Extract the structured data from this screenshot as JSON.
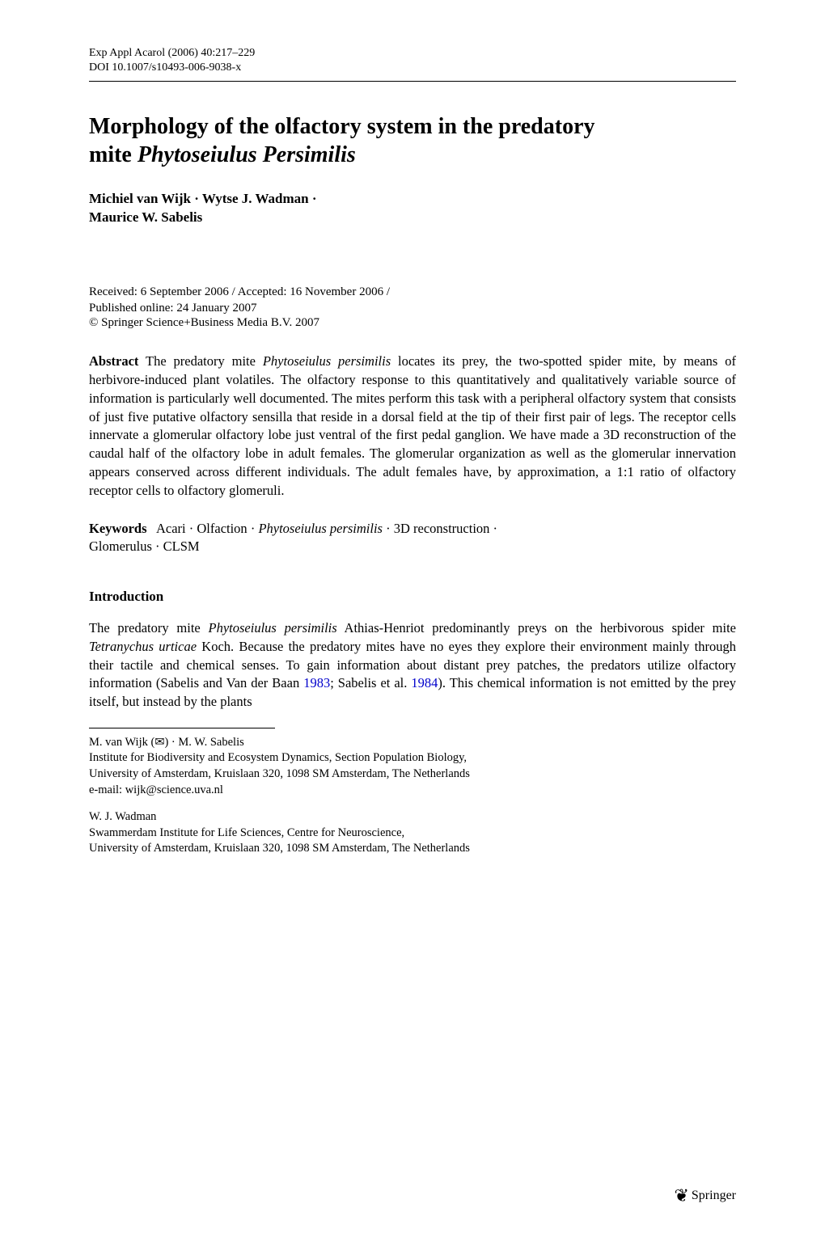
{
  "header": {
    "journal_ref": "Exp Appl Acarol (2006) 40:217–229",
    "doi": "DOI 10.1007/s10493-006-9038-x"
  },
  "title": {
    "line1": "Morphology of the olfactory system in the predatory",
    "line2_prefix": "mite ",
    "line2_italic": "Phytoseiulus Persimilis"
  },
  "authors": {
    "a1": "Michiel van Wijk",
    "a2": "Wytse J. Wadman",
    "a3": "Maurice W. Sabelis"
  },
  "dates": {
    "received_accepted": "Received: 6 September 2006 / Accepted: 16 November 2006 /",
    "published": "Published online: 24 January 2007",
    "copyright": "© Springer Science+Business Media B.V. 2007"
  },
  "abstract": {
    "label": "Abstract",
    "text_pre_italic": "  The predatory mite ",
    "species_italic": "Phytoseiulus persimilis",
    "text_post": " locates its prey, the two-spotted spider mite, by means of herbivore-induced plant volatiles. The olfactory response to this quantitatively and qualitatively variable source of information is particularly well documented. The mites perform this task with a peripheral olfactory system that consists of just five putative olfactory sensilla that reside in a dorsal field at the tip of their first pair of legs. The receptor cells innervate a glomerular olfactory lobe just ventral of the first pedal ganglion. We have made a 3D reconstruction of the caudal half of the olfactory lobe in adult females. The glomerular organization as well as the glomerular innervation appears conserved across different individuals. The adult females have, by approximation, a 1:1 ratio of olfactory receptor cells to olfactory glomeruli."
  },
  "keywords": {
    "label": "Keywords",
    "k1": "Acari",
    "k2": "Olfaction",
    "k3_italic": "Phytoseiulus persimilis",
    "k4": "3D reconstruction",
    "k5": "Glomerulus",
    "k6": "CLSM"
  },
  "intro": {
    "heading": "Introduction",
    "p1_pre": "The predatory mite ",
    "p1_species": "Phytoseiulus persimilis",
    "p1_mid1": " Athias-Henriot predominantly preys on the herbivorous spider mite ",
    "p1_species2": "Tetranychus urticae",
    "p1_mid2": " Koch. Because the predatory mites have no eyes they explore their environment mainly through their tactile and chemical senses. To gain information about distant prey patches, the predators utilize olfactory information (Sabelis and Van der Baan ",
    "p1_cite1_year": "1983",
    "p1_mid3": "; Sabelis et al. ",
    "p1_cite2_year": "1984",
    "p1_end": "). This chemical information is not emitted by the prey itself, but instead by the plants"
  },
  "affiliations": {
    "a1_names": "M. van Wijk",
    "a1_names_suffix": " · M. W. Sabelis",
    "a1_line1": "Institute for Biodiversity and Ecosystem Dynamics, Section Population Biology,",
    "a1_line2": "University of Amsterdam, Kruislaan 320, 1098  SM Amsterdam, The Netherlands",
    "a1_email": "e-mail: wijk@science.uva.nl",
    "a2_names": "W. J. Wadman",
    "a2_line1": "Swammerdam Institute for Life Sciences, Centre for Neuroscience,",
    "a2_line2": "University of Amsterdam, Kruislaan 320, 1098 SM Amsterdam, The Netherlands"
  },
  "publisher": {
    "name": "Springer"
  },
  "style": {
    "cite_color": "#0000cc"
  }
}
